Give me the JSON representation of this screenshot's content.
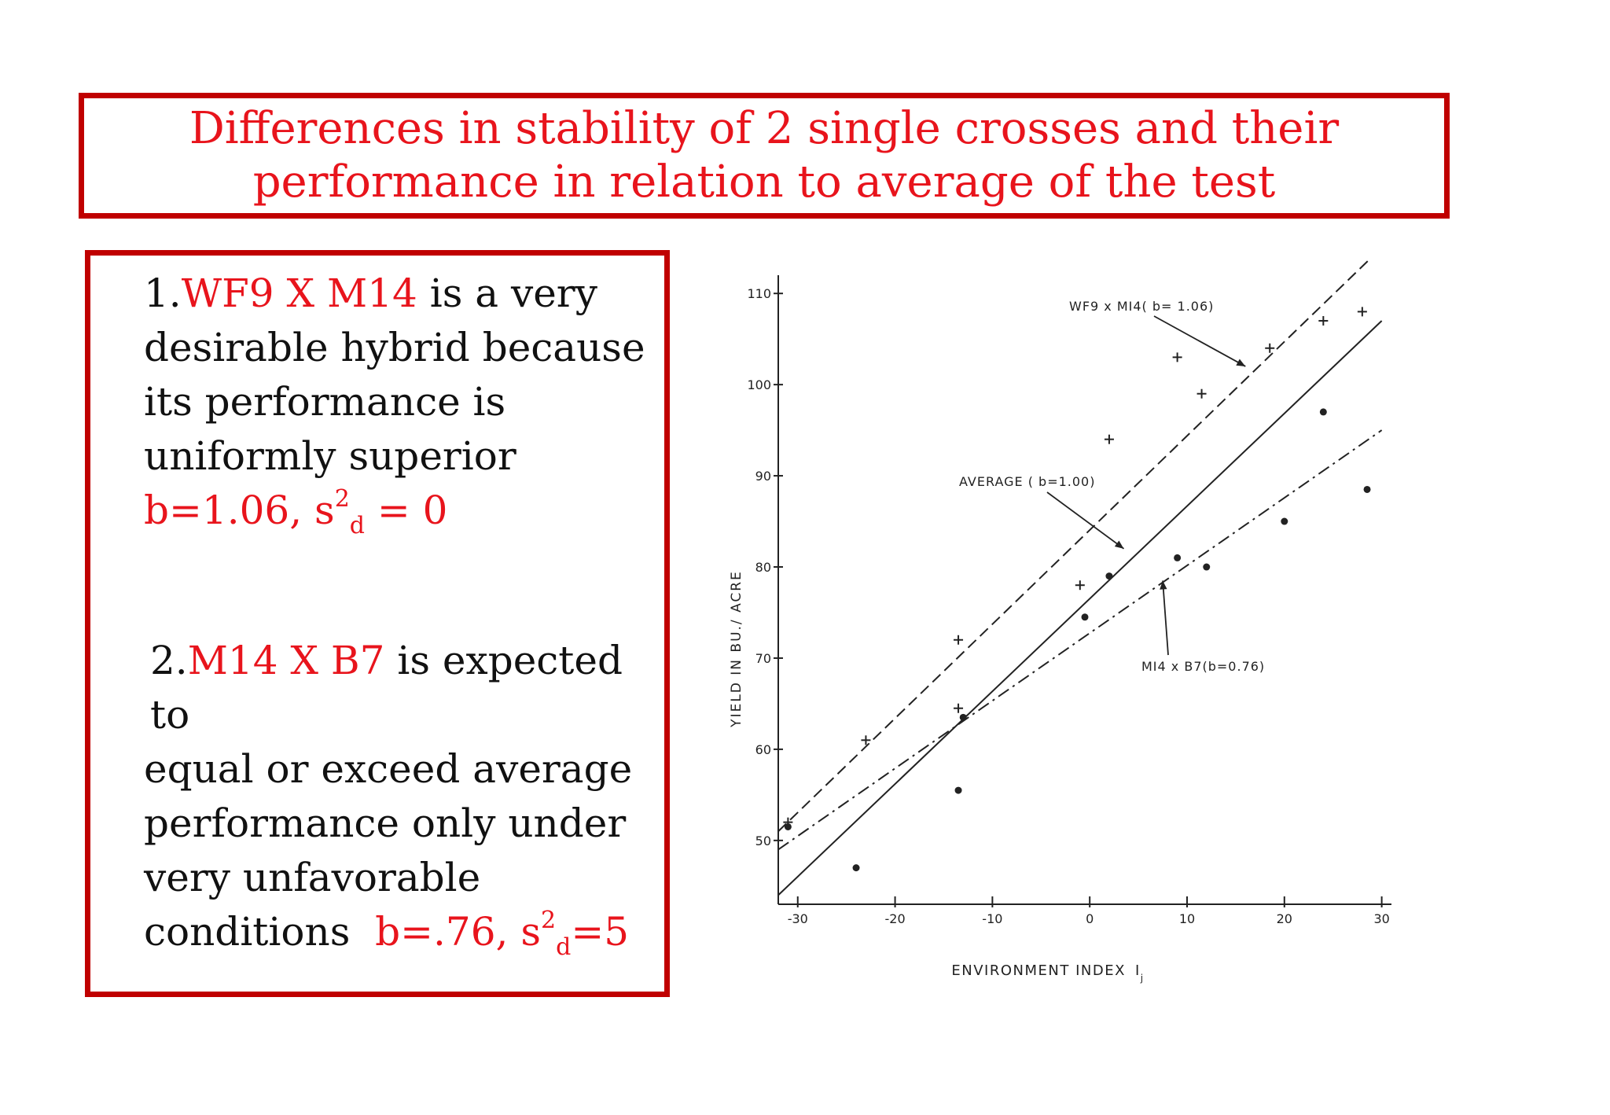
{
  "title": {
    "line1": "Differences in stability of 2 single crosses and their",
    "line2": "performance in relation to average of the test"
  },
  "point1": {
    "number": "1.",
    "hybrid": "WF9 X M14",
    "line1_rest": " is a very",
    "line2": "desirable hybrid because",
    "line3": "its performance is",
    "line4": "uniformly superior",
    "stats_b": "b=1.06, s",
    "stats_sup": "2",
    "stats_sub": "d",
    "stats_end": " = 0"
  },
  "point2": {
    "number": "2.",
    "hybrid": "M14 X B7",
    "line1_rest": " is expected to",
    "line2": "equal or exceed average",
    "line3": "performance only under",
    "line4": "very unfavorable",
    "line5_start": "conditions  ",
    "stats_b": "b=.76, s",
    "stats_sup": "2",
    "stats_sub": "d",
    "stats_end": "=5"
  },
  "colors": {
    "accent": "#e8141c",
    "border": "#c00000",
    "ink": "#222222"
  },
  "chart_data": {
    "type": "scatter",
    "xlabel": "ENVIRONMENT INDEX",
    "xlabel_sub": "I",
    "xlabel_subsub": "j",
    "ylabel": "YIELD IN BU./ ACRE",
    "xlim": [
      -32,
      31
    ],
    "ylim": [
      43,
      112
    ],
    "x_ticks": [
      -30,
      -20,
      -10,
      0,
      10,
      20,
      30
    ],
    "x_tick_labels": [
      "-30",
      "-20",
      "-10",
      "0",
      "10",
      "20",
      "30"
    ],
    "y_ticks": [
      50,
      60,
      70,
      80,
      90,
      100,
      110
    ],
    "y_tick_labels": [
      "50",
      "60",
      "70",
      "80",
      "90",
      "100",
      "110"
    ],
    "series": [
      {
        "name": "WF9 x M14",
        "marker": "plus",
        "line_style": "dashed",
        "annotation": "WF9  x  MI4( b= 1.06)",
        "points": [
          [
            -31,
            52
          ],
          [
            -23,
            61
          ],
          [
            -13.5,
            72
          ],
          [
            -13.5,
            64.5
          ],
          [
            -1,
            78
          ],
          [
            2,
            94
          ],
          [
            9,
            103
          ],
          [
            11.5,
            99
          ],
          [
            18.5,
            104
          ],
          [
            24,
            107
          ],
          [
            28,
            108
          ]
        ],
        "fit": [
          [
            -32,
            51
          ],
          [
            29,
            114
          ]
        ]
      },
      {
        "name": "AVERAGE",
        "marker": "none",
        "line_style": "solid",
        "annotation": "AVERAGE ( b=1.00)",
        "fit": [
          [
            -32,
            44
          ],
          [
            30,
            107
          ]
        ]
      },
      {
        "name": "M14 x B7",
        "marker": "dot",
        "line_style": "dashdot",
        "annotation": "MI4  x  B7(b=0.76)",
        "points": [
          [
            -31,
            51.5
          ],
          [
            -24,
            47
          ],
          [
            -13.5,
            55.5
          ],
          [
            -13,
            63.5
          ],
          [
            -0.5,
            74.5
          ],
          [
            2,
            79
          ],
          [
            9,
            81
          ],
          [
            12,
            80
          ],
          [
            20,
            85
          ],
          [
            24,
            97
          ],
          [
            28.5,
            88.5
          ]
        ],
        "fit": [
          [
            -32,
            49
          ],
          [
            30,
            95
          ]
        ]
      }
    ]
  }
}
